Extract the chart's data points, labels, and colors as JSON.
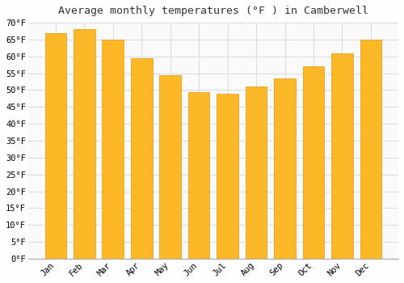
{
  "title": "Average monthly temperatures (°F ) in Camberwell",
  "months": [
    "Jan",
    "Feb",
    "Mar",
    "Apr",
    "May",
    "Jun",
    "Jul",
    "Aug",
    "Sep",
    "Oct",
    "Nov",
    "Dec"
  ],
  "values": [
    67,
    68,
    65,
    59.5,
    54.5,
    49.5,
    49,
    51,
    53.5,
    57,
    61,
    65
  ],
  "bar_color": "#FDB827",
  "bar_edge_color": "#E8950A",
  "background_color": "#FEFEFE",
  "plot_bg_color": "#FAFAFA",
  "grid_color": "#DDDDDD",
  "ylim": [
    0,
    70
  ],
  "ytick_step": 5,
  "title_fontsize": 9.5,
  "tick_fontsize": 7.5,
  "tick_font": "monospace"
}
